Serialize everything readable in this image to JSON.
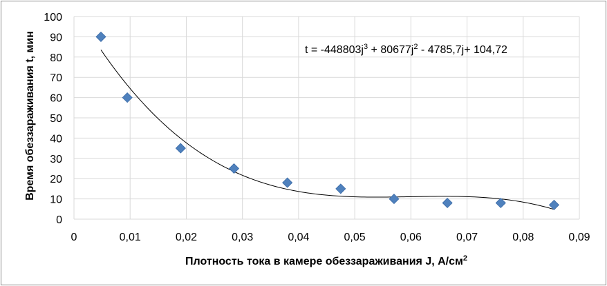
{
  "chart_data": {
    "type": "scatter",
    "xlabel": "Плотность тока в камере обеззараживания J, А/см",
    "xlabel_sup": "2",
    "ylabel": "Время обеззараживания t, мин",
    "xlim": [
      0,
      0.09
    ],
    "ylim": [
      0,
      100
    ],
    "x_ticks": [
      0,
      0.01,
      0.02,
      0.03,
      0.04,
      0.05,
      0.06,
      0.07,
      0.08,
      0.09
    ],
    "x_tick_labels": [
      "0",
      "0,01",
      "0,02",
      "0,03",
      "0,04",
      "0,05",
      "0,06",
      "0,07",
      "0,08",
      "0,09"
    ],
    "y_ticks": [
      0,
      10,
      20,
      30,
      40,
      50,
      60,
      70,
      80,
      90,
      100
    ],
    "y_tick_labels": [
      "0",
      "10",
      "20",
      "30",
      "40",
      "50",
      "60",
      "70",
      "80",
      "90",
      "100"
    ],
    "grid": true,
    "points": [
      {
        "x": 0.0048,
        "y": 90
      },
      {
        "x": 0.0095,
        "y": 60
      },
      {
        "x": 0.019,
        "y": 35
      },
      {
        "x": 0.0285,
        "y": 25
      },
      {
        "x": 0.038,
        "y": 18
      },
      {
        "x": 0.0475,
        "y": 15
      },
      {
        "x": 0.057,
        "y": 10
      },
      {
        "x": 0.0665,
        "y": 8
      },
      {
        "x": 0.076,
        "y": 8
      },
      {
        "x": 0.0855,
        "y": 7
      }
    ],
    "trendline": {
      "type": "polynomial",
      "coefficients": [
        -448803,
        80677,
        -4785.7,
        104.72
      ],
      "x_range": [
        0.0048,
        0.0855
      ]
    },
    "equation_parts": [
      "t = -448803j",
      "3",
      " + 80677j",
      "2",
      " - 4785,7j+ 104,72"
    ],
    "marker_color": "#4F81BD",
    "line_color": "#000000",
    "grid_color": "#D9D9D9"
  }
}
